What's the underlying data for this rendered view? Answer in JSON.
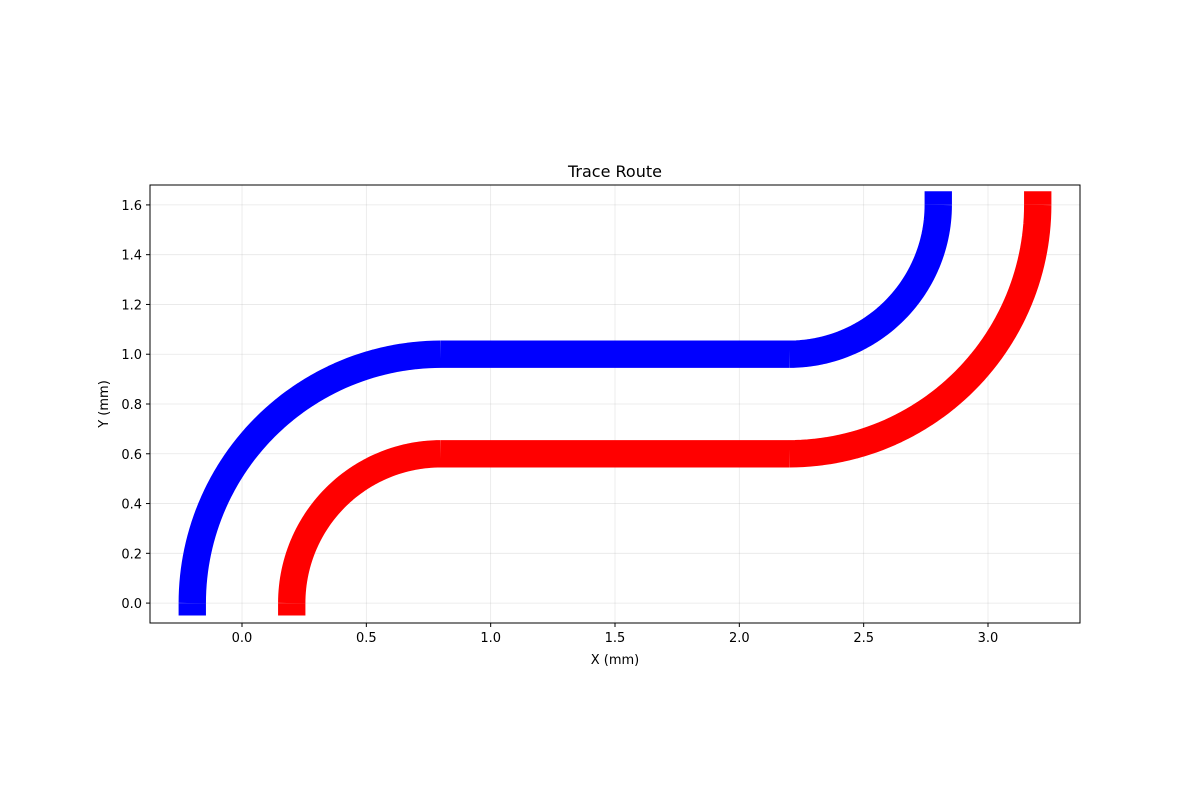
{
  "chart_data": {
    "type": "line",
    "title": "Trace Route",
    "xlabel": "X (mm)",
    "ylabel": "Y (mm)",
    "xlim": [
      -0.37,
      3.37
    ],
    "ylim": [
      -0.08,
      1.68
    ],
    "x_ticks": [
      0.0,
      0.5,
      1.0,
      1.5,
      2.0,
      2.5,
      3.0
    ],
    "x_tick_labels": [
      "0.0",
      "0.5",
      "1.0",
      "1.5",
      "2.0",
      "2.5",
      "3.0"
    ],
    "y_ticks": [
      0.0,
      0.2,
      0.4,
      0.6,
      0.8,
      1.0,
      1.2,
      1.4,
      1.6
    ],
    "y_tick_labels": [
      "0.0",
      "0.2",
      "0.4",
      "0.6",
      "0.8",
      "1.0",
      "1.2",
      "1.4",
      "1.6"
    ],
    "grid": true,
    "trace_width_mm": 0.11,
    "series": [
      {
        "color": "#0000ff",
        "segments": [
          {
            "kind": "line",
            "from": [
              -0.2,
              -0.05
            ],
            "to": [
              -0.2,
              0.0
            ]
          },
          {
            "kind": "arc",
            "center": [
              0.8,
              0.0
            ],
            "radius": 1.0,
            "start_deg": 180,
            "end_deg": 90
          },
          {
            "kind": "line",
            "from": [
              0.8,
              1.0
            ],
            "to": [
              2.2,
              1.0
            ]
          },
          {
            "kind": "arc",
            "center": [
              2.2,
              1.6
            ],
            "radius": 0.6,
            "start_deg": 270,
            "end_deg": 360
          },
          {
            "kind": "line",
            "from": [
              2.8,
              1.6
            ],
            "to": [
              2.8,
              1.655
            ]
          }
        ]
      },
      {
        "color": "#ff0000",
        "segments": [
          {
            "kind": "line",
            "from": [
              0.2,
              -0.05
            ],
            "to": [
              0.2,
              0.0
            ]
          },
          {
            "kind": "arc",
            "center": [
              0.8,
              0.0
            ],
            "radius": 0.6,
            "start_deg": 180,
            "end_deg": 90
          },
          {
            "kind": "line",
            "from": [
              0.8,
              0.6
            ],
            "to": [
              2.2,
              0.6
            ]
          },
          {
            "kind": "arc",
            "center": [
              2.2,
              1.6
            ],
            "radius": 1.0,
            "start_deg": 270,
            "end_deg": 360
          },
          {
            "kind": "line",
            "from": [
              3.2,
              1.6
            ],
            "to": [
              3.2,
              1.655
            ]
          }
        ]
      }
    ]
  }
}
